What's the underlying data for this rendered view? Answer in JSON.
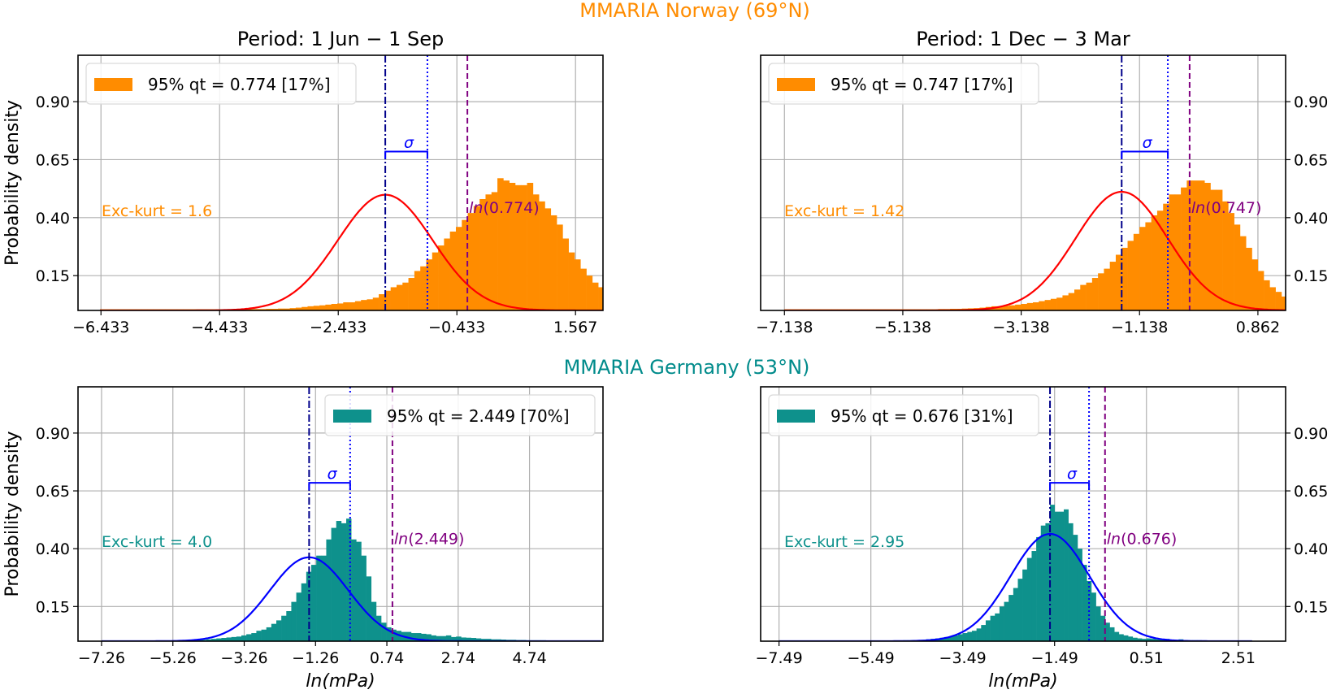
{
  "chart_data": {
    "type": "histogram-grid",
    "rows": [
      {
        "title": "MMARIA Norway (69°N)",
        "color": "#ff8c00"
      },
      {
        "title": "MMARIA Germany (53°N)",
        "color": "#008b8b"
      }
    ],
    "panels": [
      {
        "row": 0,
        "col": 0,
        "title": "Period: 1 Jun − 1 Sep",
        "ylabel": "Probability density",
        "xlabel": "",
        "yaxis_side": "left",
        "bar_color": "#ff8c00",
        "fit_color": "#ff0000",
        "xlim": [
          -6.82,
          2.03
        ],
        "ylim": [
          0,
          1.1
        ],
        "xticks": [
          -6.433,
          -4.433,
          -2.433,
          -0.433,
          1.567
        ],
        "xtick_labels": [
          "−6.433",
          "−4.433",
          "−2.433",
          "−0.433",
          "1.567"
        ],
        "yticks": [
          0.15,
          0.4,
          0.65,
          0.9
        ],
        "ytick_labels": [
          "0.15",
          "0.40",
          "0.65",
          "0.90"
        ],
        "legend": {
          "label": "95% qt = 0.774 [17%]",
          "position": "upper-left"
        },
        "kurtosis_label": "Exc-kurt = 1.6",
        "mean": -1.64,
        "sigma_line": -0.93,
        "ln_qt": -0.256,
        "ln_label": "ln(0.774)",
        "sigma_label": "σ",
        "fit": {
          "mu": -1.64,
          "sd": 0.8
        },
        "hist": {
          "start": -6.45,
          "width": 0.1,
          "values": [
            0.005,
            0.005,
            0.005,
            0.005,
            0.005,
            0.005,
            0.005,
            0.005,
            0.005,
            0.005,
            0.005,
            0.005,
            0.005,
            0.005,
            0.005,
            0.005,
            0.005,
            0.005,
            0.005,
            0.005,
            0.005,
            0.005,
            0.005,
            0.005,
            0.005,
            0.006,
            0.006,
            0.006,
            0.007,
            0.007,
            0.008,
            0.008,
            0.01,
            0.012,
            0.015,
            0.018,
            0.02,
            0.022,
            0.025,
            0.028,
            0.03,
            0.035,
            0.035,
            0.04,
            0.045,
            0.048,
            0.055,
            0.07,
            0.085,
            0.1,
            0.11,
            0.12,
            0.14,
            0.17,
            0.19,
            0.22,
            0.25,
            0.28,
            0.31,
            0.34,
            0.36,
            0.39,
            0.42,
            0.45,
            0.48,
            0.5,
            0.51,
            0.57,
            0.56,
            0.55,
            0.54,
            0.54,
            0.55,
            0.5,
            0.47,
            0.44,
            0.41,
            0.37,
            0.31,
            0.25,
            0.22,
            0.18,
            0.15,
            0.12,
            0.1,
            0.08,
            0.065,
            0.05,
            0.04,
            0.03,
            0.025,
            0.02,
            0.015,
            0.012,
            0.01,
            0.008,
            0.007,
            0.006,
            0.005,
            0.005
          ]
        }
      },
      {
        "row": 0,
        "col": 1,
        "title": "Period: 1 Dec − 3 Mar",
        "ylabel": "",
        "xlabel": "",
        "yaxis_side": "right",
        "bar_color": "#ff8c00",
        "fit_color": "#ff0000",
        "xlim": [
          -7.54,
          1.33
        ],
        "ylim": [
          0,
          1.1
        ],
        "xticks": [
          -7.138,
          -5.138,
          -3.138,
          -1.138,
          0.862
        ],
        "xtick_labels": [
          "−7.138",
          "−5.138",
          "−3.138",
          "−1.138",
          "0.862"
        ],
        "yticks": [
          0.15,
          0.4,
          0.65,
          0.9
        ],
        "ytick_labels": [
          "0.15",
          "0.40",
          "0.65",
          "0.90"
        ],
        "legend": {
          "label": "95% qt = 0.747 [17%]",
          "position": "upper-left"
        },
        "kurtosis_label": "Exc-kurt = 1.42",
        "mean": -1.44,
        "sigma_line": -0.66,
        "ln_qt": -0.292,
        "ln_label": "ln(0.747)",
        "sigma_label": "σ",
        "fit": {
          "mu": -1.44,
          "sd": 0.78
        },
        "hist": {
          "start": -7.14,
          "width": 0.1,
          "values": [
            0.005,
            0.005,
            0.005,
            0.005,
            0.005,
            0.005,
            0.005,
            0.005,
            0.005,
            0.005,
            0.005,
            0.005,
            0.005,
            0.005,
            0.005,
            0.005,
            0.005,
            0.005,
            0.005,
            0.005,
            0.005,
            0.005,
            0.005,
            0.005,
            0.005,
            0.005,
            0.006,
            0.006,
            0.007,
            0.007,
            0.008,
            0.009,
            0.01,
            0.012,
            0.015,
            0.018,
            0.018,
            0.02,
            0.022,
            0.025,
            0.028,
            0.032,
            0.035,
            0.04,
            0.045,
            0.05,
            0.055,
            0.065,
            0.075,
            0.09,
            0.11,
            0.12,
            0.14,
            0.16,
            0.18,
            0.21,
            0.24,
            0.27,
            0.3,
            0.33,
            0.36,
            0.38,
            0.41,
            0.43,
            0.46,
            0.5,
            0.5,
            0.53,
            0.56,
            0.56,
            0.56,
            0.55,
            0.52,
            0.52,
            0.47,
            0.42,
            0.37,
            0.32,
            0.27,
            0.22,
            0.17,
            0.13,
            0.1,
            0.08,
            0.06,
            0.045,
            0.035,
            0.025,
            0.02,
            0.015,
            0.012,
            0.01,
            0.008,
            0.007,
            0.006,
            0.005,
            0.005
          ]
        }
      },
      {
        "row": 1,
        "col": 0,
        "title": "",
        "ylabel": "Probability density",
        "xlabel": "ln(mPa)",
        "yaxis_side": "left",
        "bar_color": "#0e918c",
        "fit_color": "#0000ff",
        "xlim": [
          -7.92,
          6.8
        ],
        "ylim": [
          0,
          1.1
        ],
        "xticks": [
          -7.26,
          -5.26,
          -3.26,
          -1.26,
          0.74,
          2.74,
          4.74
        ],
        "xtick_labels": [
          "−7.26",
          "−5.26",
          "−3.26",
          "−1.26",
          "0.74",
          "2.74",
          "4.74"
        ],
        "yticks": [
          0.15,
          0.4,
          0.65,
          0.9
        ],
        "ytick_labels": [
          "0.15",
          "0.40",
          "0.65",
          "0.90"
        ],
        "legend": {
          "label": "95% qt = 2.449 [70%]",
          "position": "upper-right"
        },
        "kurtosis_label": "Exc-kurt = 4.0",
        "mean": -1.44,
        "sigma_line": -0.29,
        "ln_qt": 0.896,
        "ln_label": "ln(2.449)",
        "sigma_label": "σ",
        "fit": {
          "mu": -1.44,
          "sd": 1.1
        },
        "hist": {
          "start": -7.26,
          "width": 0.14,
          "values": [
            0.003,
            0.003,
            0.003,
            0.003,
            0.003,
            0.003,
            0.003,
            0.003,
            0.003,
            0.003,
            0.003,
            0.003,
            0.003,
            0.003,
            0.003,
            0.003,
            0.003,
            0.003,
            0.003,
            0.005,
            0.006,
            0.008,
            0.01,
            0.012,
            0.014,
            0.016,
            0.018,
            0.02,
            0.025,
            0.03,
            0.035,
            0.045,
            0.05,
            0.06,
            0.075,
            0.09,
            0.11,
            0.13,
            0.17,
            0.21,
            0.25,
            0.3,
            0.33,
            0.37,
            0.37,
            0.44,
            0.49,
            0.52,
            0.51,
            0.53,
            0.44,
            0.43,
            0.37,
            0.28,
            0.17,
            0.11,
            0.08,
            0.06,
            0.05,
            0.045,
            0.04,
            0.04,
            0.035,
            0.035,
            0.032,
            0.03,
            0.025,
            0.022,
            0.022,
            0.025,
            0.018,
            0.02,
            0.016,
            0.015,
            0.014,
            0.012,
            0.01,
            0.01,
            0.008,
            0.008,
            0.007,
            0.006,
            0.006,
            0.005,
            0.005,
            0.004,
            0.004,
            0.004,
            0.004,
            0.003,
            0.003,
            0.003,
            0.003,
            0.003,
            0.003,
            0.003,
            0.003,
            0.003,
            0.003,
            0.003
          ]
        }
      },
      {
        "row": 1,
        "col": 1,
        "title": "",
        "ylabel": "",
        "xlabel": "ln(mPa)",
        "yaxis_side": "right",
        "bar_color": "#0e918c",
        "fit_color": "#0000ff",
        "xlim": [
          -7.89,
          3.54
        ],
        "ylim": [
          0,
          1.1
        ],
        "xticks": [
          -7.49,
          -5.49,
          -3.49,
          -1.49,
          0.51,
          2.51
        ],
        "xtick_labels": [
          "−7.49",
          "−5.49",
          "−3.49",
          "−1.49",
          "0.51",
          "2.51"
        ],
        "yticks": [
          0.15,
          0.4,
          0.65,
          0.9
        ],
        "ytick_labels": [
          "0.15",
          "0.40",
          "0.65",
          "0.90"
        ],
        "legend": {
          "label": "95% qt = 0.676 [31%]",
          "position": "upper-left"
        },
        "kurtosis_label": "Exc-kurt = 2.95",
        "mean": -1.59,
        "sigma_line": -0.74,
        "ln_qt": -0.392,
        "ln_label": "ln(0.676)",
        "sigma_label": "σ",
        "fit": {
          "mu": -1.59,
          "sd": 0.86
        },
        "hist": {
          "start": -7.49,
          "width": 0.1,
          "values": [
            0.003,
            0.003,
            0.003,
            0.003,
            0.003,
            0.003,
            0.003,
            0.003,
            0.003,
            0.003,
            0.003,
            0.003,
            0.003,
            0.003,
            0.003,
            0.003,
            0.003,
            0.003,
            0.003,
            0.003,
            0.003,
            0.003,
            0.003,
            0.003,
            0.003,
            0.003,
            0.003,
            0.004,
            0.004,
            0.005,
            0.005,
            0.006,
            0.008,
            0.01,
            0.012,
            0.015,
            0.018,
            0.02,
            0.025,
            0.03,
            0.035,
            0.04,
            0.045,
            0.055,
            0.07,
            0.09,
            0.11,
            0.12,
            0.15,
            0.17,
            0.2,
            0.23,
            0.27,
            0.31,
            0.36,
            0.39,
            0.45,
            0.5,
            0.51,
            0.59,
            0.56,
            0.56,
            0.57,
            0.51,
            0.46,
            0.4,
            0.33,
            0.26,
            0.21,
            0.15,
            0.11,
            0.08,
            0.06,
            0.04,
            0.03,
            0.025,
            0.02,
            0.015,
            0.012,
            0.01,
            0.012,
            0.01,
            0.008,
            0.008,
            0.01,
            0.006,
            0.006,
            0.008,
            0.005,
            0.004,
            0.004,
            0.004,
            0.003,
            0.003,
            0.003,
            0.003,
            0.003,
            0.003,
            0.003,
            0.003,
            0.003,
            0.003,
            0.003
          ]
        }
      }
    ]
  }
}
